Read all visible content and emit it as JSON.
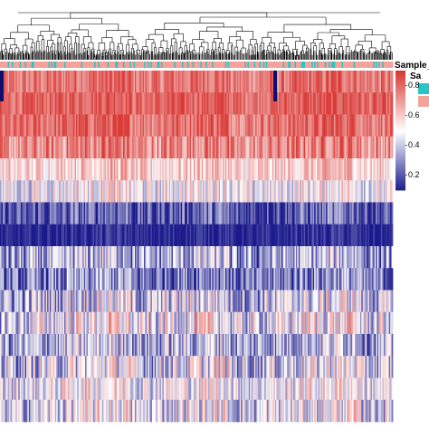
{
  "chart_data": {
    "type": "heatmap",
    "title": "",
    "annotation_title": "Sample_",
    "annotation_subtitle": "Sa",
    "annotation_colors": {
      "cyan": "#26c6c6",
      "salmon": "#f4a39a"
    },
    "colorscale": {
      "low": "#1a1a8c",
      "mid": "#ffffff",
      "high": "#d93a36"
    },
    "colorbar_ticks": [
      0.2,
      0.4,
      0.6,
      0.8
    ],
    "colorbar_range": [
      0.1,
      0.9
    ],
    "n_columns": 300,
    "rows": [
      {
        "mean": 0.78,
        "spread": 0.12
      },
      {
        "mean": 0.82,
        "spread": 0.1
      },
      {
        "mean": 0.8,
        "spread": 0.12
      },
      {
        "mean": 0.74,
        "spread": 0.16
      },
      {
        "mean": 0.6,
        "spread": 0.14
      },
      {
        "mean": 0.5,
        "spread": 0.18
      },
      {
        "mean": 0.22,
        "spread": 0.16
      },
      {
        "mean": 0.12,
        "spread": 0.08
      },
      {
        "mean": 0.35,
        "spread": 0.22
      },
      {
        "mean": 0.28,
        "spread": 0.2
      },
      {
        "mean": 0.42,
        "spread": 0.24
      },
      {
        "mean": 0.48,
        "spread": 0.24
      },
      {
        "mean": 0.38,
        "spread": 0.22
      },
      {
        "mean": 0.44,
        "spread": 0.24
      },
      {
        "mean": 0.5,
        "spread": 0.2
      },
      {
        "mean": 0.46,
        "spread": 0.22
      }
    ]
  }
}
